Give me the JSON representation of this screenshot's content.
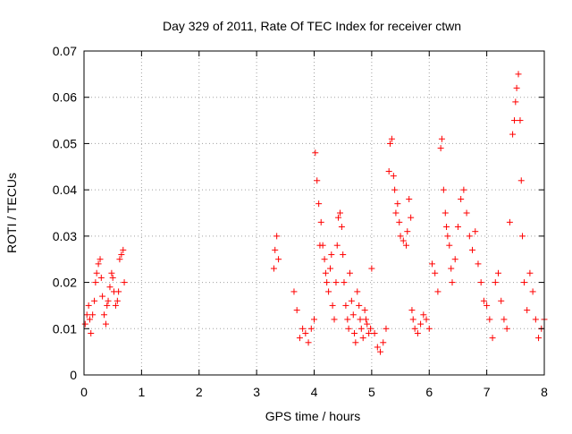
{
  "chart_data": {
    "type": "scatter",
    "title": "Day 329 of 2011, Rate Of TEC Index for receiver ctwn",
    "xlabel": "GPS time / hours",
    "ylabel": "ROTI / TECUs",
    "xlim": [
      0,
      8
    ],
    "ylim": [
      0,
      0.07
    ],
    "xticks": [
      "0",
      "1",
      "2",
      "3",
      "4",
      "5",
      "6",
      "7",
      "8"
    ],
    "yticks": [
      "0",
      "0.01",
      "0.02",
      "0.03",
      "0.04",
      "0.05",
      "0.06",
      "0.07"
    ],
    "grid": true,
    "marker": "plus",
    "color": "#ff0000",
    "x": [
      0.02,
      0.05,
      0.08,
      0.1,
      0.12,
      0.15,
      0.18,
      0.2,
      0.22,
      0.25,
      0.28,
      0.3,
      0.32,
      0.35,
      0.38,
      0.4,
      0.42,
      0.45,
      0.48,
      0.5,
      0.52,
      0.55,
      0.58,
      0.6,
      0.62,
      0.65,
      0.68,
      0.7,
      3.3,
      3.32,
      3.35,
      3.38,
      3.65,
      3.7,
      3.75,
      3.8,
      3.85,
      3.9,
      3.95,
      4.0,
      4.02,
      4.05,
      4.08,
      4.1,
      4.12,
      4.15,
      4.18,
      4.2,
      4.22,
      4.25,
      4.28,
      4.3,
      4.32,
      4.35,
      4.38,
      4.4,
      4.42,
      4.45,
      4.48,
      4.5,
      4.52,
      4.55,
      4.58,
      4.6,
      4.62,
      4.65,
      4.68,
      4.7,
      4.72,
      4.75,
      4.78,
      4.8,
      4.82,
      4.85,
      4.88,
      4.9,
      4.92,
      4.95,
      4.98,
      5.0,
      5.05,
      5.1,
      5.15,
      5.2,
      5.25,
      5.3,
      5.32,
      5.35,
      5.38,
      5.4,
      5.42,
      5.45,
      5.48,
      5.5,
      5.55,
      5.6,
      5.62,
      5.65,
      5.68,
      5.7,
      5.72,
      5.75,
      5.8,
      5.85,
      5.9,
      5.95,
      6.0,
      6.05,
      6.1,
      6.15,
      6.2,
      6.22,
      6.25,
      6.28,
      6.3,
      6.32,
      6.35,
      6.38,
      6.4,
      6.45,
      6.5,
      6.55,
      6.6,
      6.65,
      6.7,
      6.75,
      6.8,
      6.85,
      6.9,
      6.95,
      7.0,
      7.05,
      7.1,
      7.15,
      7.2,
      7.25,
      7.3,
      7.35,
      7.4,
      7.45,
      7.48,
      7.5,
      7.52,
      7.55,
      7.58,
      7.6,
      7.62,
      7.65,
      7.7,
      7.75,
      7.8,
      7.85,
      7.9,
      7.95,
      8.0
    ],
    "y": [
      0.011,
      0.013,
      0.015,
      0.012,
      0.009,
      0.013,
      0.016,
      0.02,
      0.022,
      0.024,
      0.025,
      0.021,
      0.017,
      0.013,
      0.011,
      0.015,
      0.016,
      0.019,
      0.022,
      0.021,
      0.018,
      0.015,
      0.016,
      0.018,
      0.025,
      0.026,
      0.027,
      0.02,
      0.023,
      0.027,
      0.03,
      0.025,
      0.018,
      0.014,
      0.008,
      0.01,
      0.009,
      0.007,
      0.01,
      0.012,
      0.048,
      0.042,
      0.037,
      0.028,
      0.033,
      0.028,
      0.025,
      0.022,
      0.02,
      0.018,
      0.023,
      0.026,
      0.015,
      0.012,
      0.02,
      0.028,
      0.034,
      0.035,
      0.032,
      0.026,
      0.02,
      0.015,
      0.012,
      0.01,
      0.022,
      0.016,
      0.013,
      0.009,
      0.007,
      0.018,
      0.015,
      0.012,
      0.01,
      0.008,
      0.014,
      0.012,
      0.011,
      0.009,
      0.01,
      0.023,
      0.009,
      0.006,
      0.005,
      0.007,
      0.01,
      0.044,
      0.05,
      0.051,
      0.043,
      0.04,
      0.035,
      0.037,
      0.033,
      0.03,
      0.029,
      0.028,
      0.031,
      0.038,
      0.034,
      0.014,
      0.012,
      0.01,
      0.009,
      0.011,
      0.013,
      0.012,
      0.01,
      0.024,
      0.022,
      0.018,
      0.049,
      0.051,
      0.04,
      0.035,
      0.032,
      0.03,
      0.028,
      0.023,
      0.02,
      0.025,
      0.032,
      0.038,
      0.04,
      0.035,
      0.03,
      0.027,
      0.031,
      0.024,
      0.02,
      0.016,
      0.015,
      0.012,
      0.008,
      0.02,
      0.022,
      0.016,
      0.012,
      0.01,
      0.033,
      0.052,
      0.055,
      0.059,
      0.062,
      0.065,
      0.055,
      0.042,
      0.03,
      0.02,
      0.014,
      0.022,
      0.018,
      0.012,
      0.008,
      0.01,
      0.012
    ]
  }
}
